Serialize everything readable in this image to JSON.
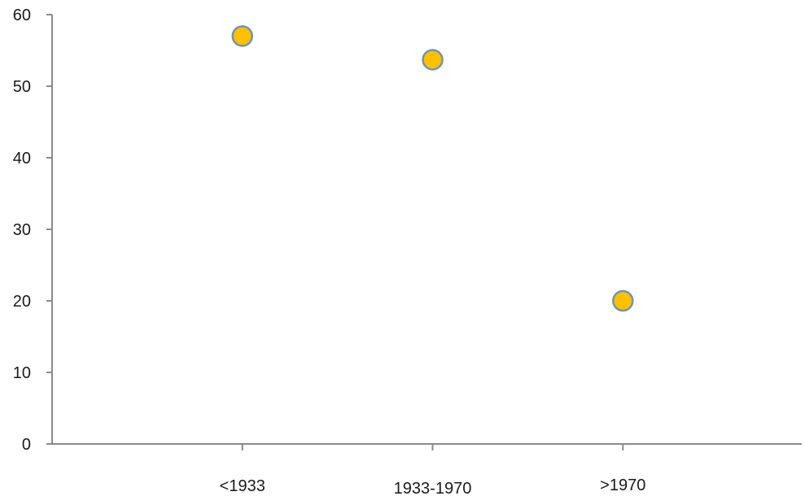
{
  "chart_data": {
    "type": "scatter",
    "title": "",
    "xlabel": "",
    "ylabel": "",
    "categories": [
      "<1933",
      "1933-1970",
      ">1970"
    ],
    "values": [
      57,
      53.7,
      20
    ],
    "ylim": [
      0,
      60
    ],
    "yticks": [
      0,
      10,
      20,
      30,
      40,
      50,
      60
    ],
    "grid": false,
    "legend": "none",
    "colors": {
      "marker_fill": "#FFC000",
      "marker_edge": "#6F95AE",
      "axis": "#8A8A8A",
      "text": "#1A1A1A"
    }
  }
}
